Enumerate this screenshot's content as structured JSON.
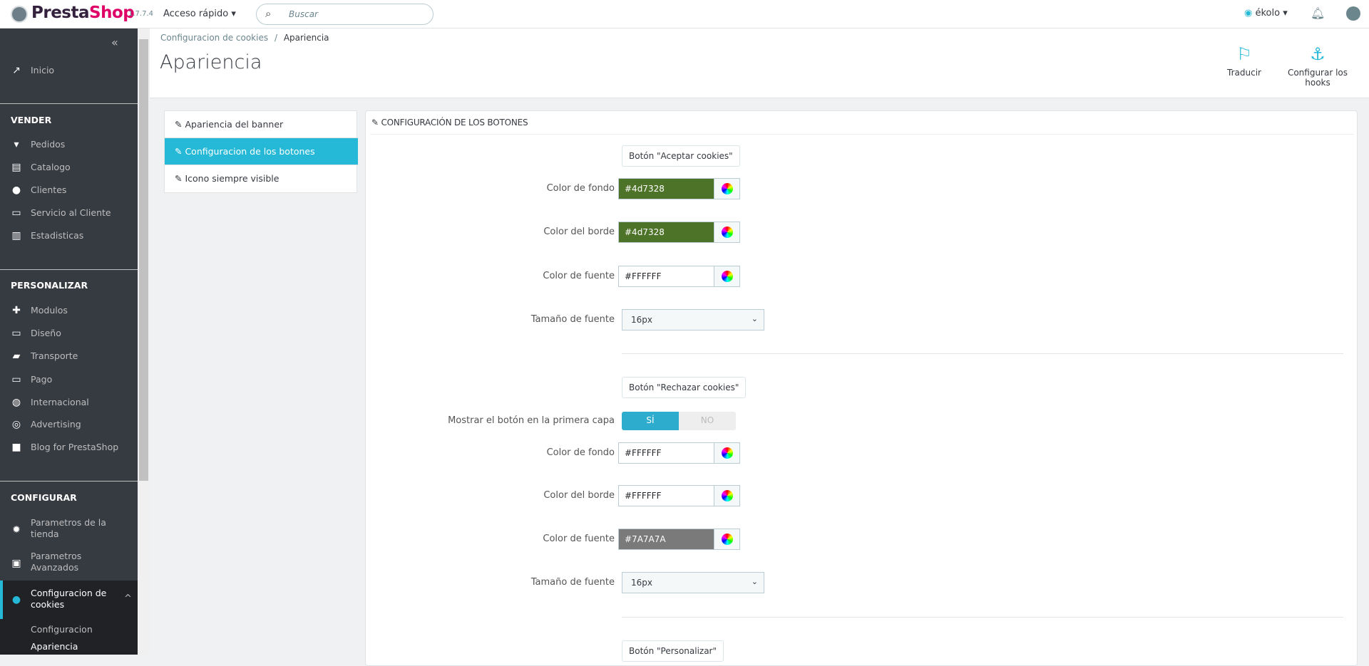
{
  "header": {
    "brand_a": "Presta",
    "brand_b": "Shop",
    "version": "1.7.7.4",
    "quick_access": "Acceso rápido",
    "search_placeholder": "Buscar",
    "shop_name": "ékolo"
  },
  "sidebar": {
    "inicio": "Inicio",
    "sections": [
      {
        "title": "VENDER",
        "items": [
          "Pedidos",
          "Catalogo",
          "Clientes",
          "Servicio al Cliente",
          "Estadisticas"
        ]
      },
      {
        "title": "PERSONALIZAR",
        "items": [
          "Modulos",
          "Diseño",
          "Transporte",
          "Pago",
          "Internacional",
          "Advertising",
          "Blog for PrestaShop"
        ]
      },
      {
        "title": "CONFIGURAR",
        "items": [
          "Parametros de la tienda",
          "Parametros Avanzados",
          "Configuracion de cookies"
        ]
      }
    ],
    "submenu": [
      "Configuracion",
      "Apariencia"
    ]
  },
  "breadcrumb": {
    "parent": "Configuracion de cookies",
    "sep": "/",
    "current": "Apariencia"
  },
  "page_title": "Apariencia",
  "toolbar": {
    "translate": "Traducir",
    "hooks": "Configurar los hooks"
  },
  "tabs": [
    "Apariencia del banner",
    "Configuracion de los botones",
    "Icono siempre visible"
  ],
  "panel": {
    "heading": "CONFIGURACIÓN DE LOS BOTONES",
    "accept": {
      "title": "Botón \"Aceptar cookies\"",
      "bg_label": "Color de fondo",
      "bg": "#4d7328",
      "border_label": "Color del borde",
      "border": "#4d7328",
      "font_label": "Color de fuente",
      "font": "#FFFFFF",
      "size_label": "Tamaño de fuente",
      "size": "16px"
    },
    "reject": {
      "title": "Botón \"Rechazar cookies\"",
      "show_label": "Mostrar el botón en la primera capa",
      "yes": "SÍ",
      "no": "NO",
      "show": true,
      "bg_label": "Color de fondo",
      "bg": "#FFFFFF",
      "border_label": "Color del borde",
      "border": "#FFFFFF",
      "font_label": "Color de fuente",
      "font": "#7A7A7A",
      "size_label": "Tamaño de fuente",
      "size": "16px"
    },
    "customize": {
      "title": "Botón \"Personalizar\""
    }
  },
  "colors": {
    "accent": "#25b9d7",
    "sidebar": "#363a41",
    "green": "#4d7328",
    "grey": "#7a7a7a"
  }
}
